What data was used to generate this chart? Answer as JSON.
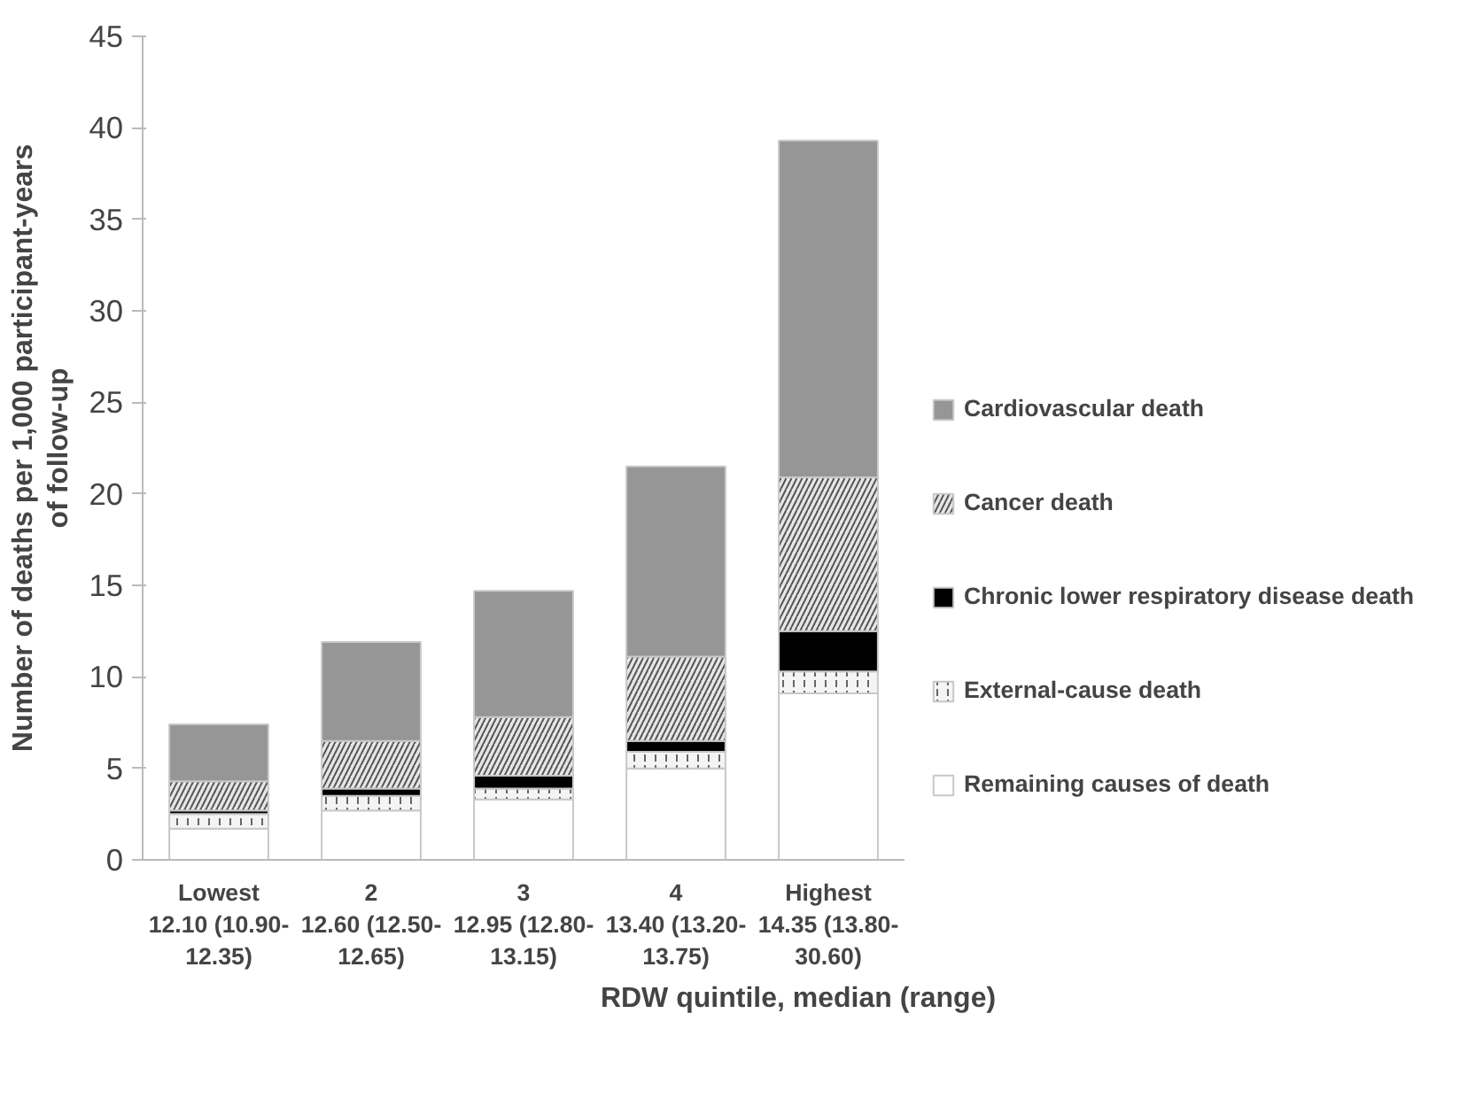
{
  "chart_data": {
    "type": "bar",
    "stacked": true,
    "xlabel": "RDW quintile, median (range)",
    "ylabel": "Number of deaths per 1,000 participant-years\nof follow-up",
    "categories": [
      "Lowest\n12.10 (10.90-\n12.35)",
      "2\n12.60 (12.50-\n12.65)",
      "3\n12.95 (12.80-\n13.15)",
      "4\n13.40 (13.20-\n13.75)",
      "Highest\n14.35 (13.80-\n30.60)"
    ],
    "series": [
      {
        "name": "Remaining causes of death",
        "color": "#ffffff",
        "values": [
          1.7,
          2.7,
          3.3,
          5.0,
          9.1
        ]
      },
      {
        "name": "External-cause death",
        "color": "#f4f4f4",
        "values": [
          0.8,
          0.8,
          0.6,
          0.9,
          1.2
        ]
      },
      {
        "name": "Chronic lower respiratory disease death",
        "color": "#000000",
        "values": [
          0.2,
          0.4,
          0.7,
          0.6,
          2.2
        ]
      },
      {
        "name": "Cancer death",
        "color": "#e6e6e6",
        "values": [
          1.6,
          2.6,
          3.2,
          4.6,
          8.4
        ]
      },
      {
        "name": "Cardiovascular death",
        "color": "#969696",
        "values": [
          3.1,
          5.4,
          6.9,
          10.4,
          18.4
        ]
      }
    ],
    "ylim": [
      0,
      45
    ],
    "yticks": [
      0,
      5,
      10,
      15,
      20,
      25,
      30,
      35,
      40,
      45
    ],
    "grid": false,
    "legend": "right"
  }
}
